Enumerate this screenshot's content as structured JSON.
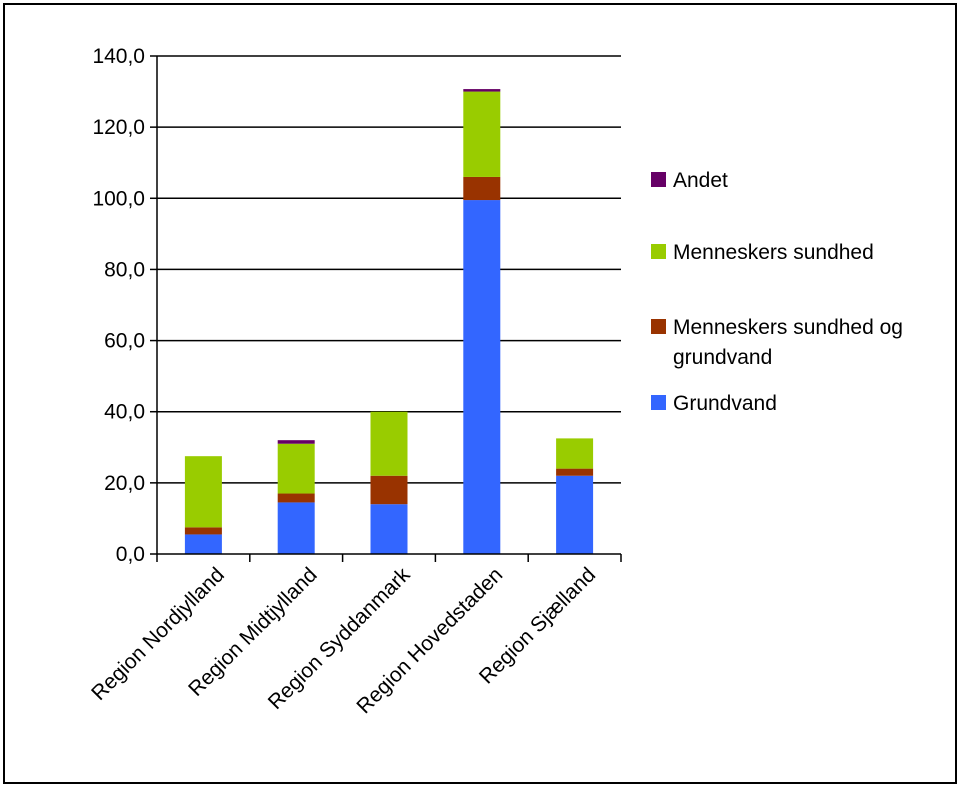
{
  "chart_data": {
    "type": "bar",
    "stacked": true,
    "title": "",
    "xlabel": "",
    "ylabel": "",
    "ylim": [
      0,
      140
    ],
    "yticks": [
      "0,0",
      "20,0",
      "40,0",
      "60,0",
      "80,0",
      "100,0",
      "120,0",
      "140,0"
    ],
    "grid": true,
    "legend_position": "right",
    "categories": [
      "Region Nordjylland",
      "Region Midtjylland",
      "Region Syddanmark",
      "Region Hovedstaden",
      "Region Sjælland"
    ],
    "series": [
      {
        "name": "Grundvand",
        "color": "#3366ff",
        "values": [
          5.5,
          14.5,
          14.0,
          99.5,
          22.0
        ]
      },
      {
        "name": "Menneskers sundhed og grundvand",
        "color": "#993300",
        "values": [
          2.0,
          2.5,
          8.0,
          6.5,
          2.0
        ]
      },
      {
        "name": "Menneskers sundhed",
        "color": "#99cc00",
        "values": [
          20.0,
          14.0,
          18.0,
          24.0,
          8.5
        ]
      },
      {
        "name": "Andet",
        "color": "#660066",
        "values": [
          0.0,
          1.0,
          0.0,
          0.7,
          0.0
        ]
      }
    ],
    "legend_order": [
      "Andet",
      "Menneskers sundhed",
      "Menneskers sundhed og grundvand",
      "Grundvand"
    ]
  }
}
